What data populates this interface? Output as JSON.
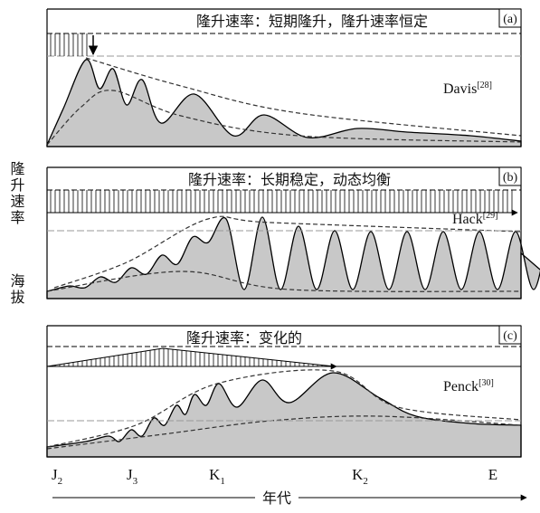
{
  "panels": [
    {
      "title": "隆升速率：短期隆升，隆升速率恒定",
      "label": "(a)",
      "model": "Davis",
      "ref": "[28]"
    },
    {
      "title": "隆升速率：长期稳定，动态均衡",
      "label": "(b)",
      "model": "Hack",
      "ref": "[29]"
    },
    {
      "title": "隆升速率：变化的",
      "label": "(c)",
      "model": "Penck",
      "ref": "[30]"
    }
  ],
  "y_axis": {
    "labels": [
      "隆升速率",
      "海拔"
    ]
  },
  "x_axis": {
    "title": "年代",
    "ticks": [
      {
        "base": "J",
        "sub": "2"
      },
      {
        "base": "J",
        "sub": "3"
      },
      {
        "base": "K",
        "sub": "1"
      },
      {
        "base": "K",
        "sub": "2"
      },
      {
        "base": "E",
        "sub": null
      }
    ]
  }
}
